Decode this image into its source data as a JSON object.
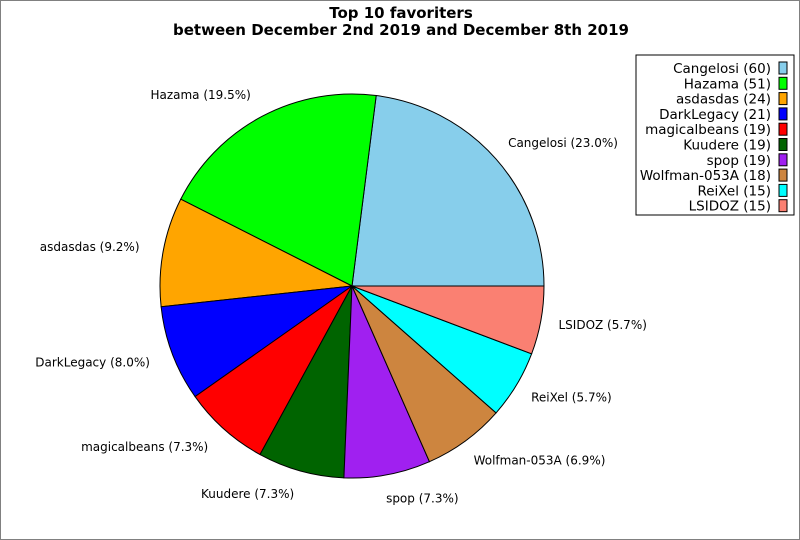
{
  "chart_data": {
    "type": "pie",
    "title_lines": [
      "Top 10 favoriters",
      "between December 2nd 2019 and December 8th 2019"
    ],
    "legend_position": "top-right",
    "start_angle_deg": 0,
    "direction": "counterclockwise",
    "slices": [
      {
        "name": "Cangelosi",
        "value": 60,
        "percent": "23.0%",
        "color": "#87CEEB"
      },
      {
        "name": "Hazama",
        "value": 51,
        "percent": "19.5%",
        "color": "#00FF00"
      },
      {
        "name": "asdasdas",
        "value": 24,
        "percent": "9.2%",
        "color": "#FFA500"
      },
      {
        "name": "DarkLegacy",
        "value": 21,
        "percent": "8.0%",
        "color": "#0000FF"
      },
      {
        "name": "magicalbeans",
        "value": 19,
        "percent": "7.3%",
        "color": "#FF0000"
      },
      {
        "name": "Kuudere",
        "value": 19,
        "percent": "7.3%",
        "color": "#006400"
      },
      {
        "name": "spop",
        "value": 19,
        "percent": "7.3%",
        "color": "#A020F0"
      },
      {
        "name": "Wolfman-053A",
        "value": 18,
        "percent": "6.9%",
        "color": "#CD853F"
      },
      {
        "name": "ReiXel",
        "value": 15,
        "percent": "5.7%",
        "color": "#00FFFF"
      },
      {
        "name": "LSIDOZ",
        "value": 15,
        "percent": "5.7%",
        "color": "#FA8072"
      }
    ]
  }
}
